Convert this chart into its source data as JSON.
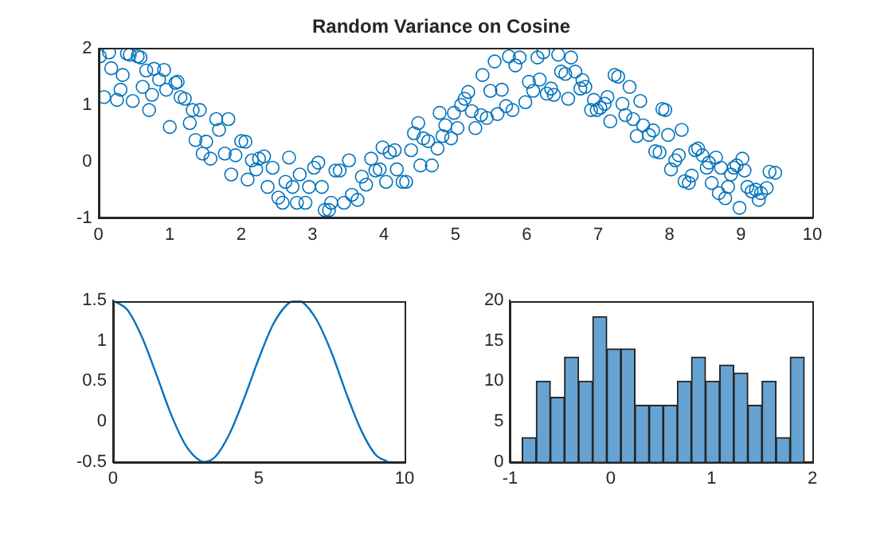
{
  "chart_data": [
    {
      "type": "scatter",
      "title": "Random Variance on Cosine",
      "color": "#0072bd",
      "marker": "circle",
      "xlim": [
        0,
        10
      ],
      "xticks": [
        0,
        1,
        2,
        3,
        4,
        5,
        6,
        7,
        8,
        9,
        10
      ],
      "ylim": [
        -1,
        2
      ],
      "yticks": [
        -1,
        0,
        1,
        2
      ],
      "x": [
        0.02,
        0.15,
        0.08,
        0.18,
        0.26,
        0.31,
        0.34,
        0.4,
        0.44,
        0.48,
        0.55,
        0.59,
        0.62,
        0.67,
        0.71,
        0.75,
        0.78,
        0.85,
        0.92,
        0.95,
        1.0,
        1.08,
        1.11,
        1.15,
        1.21,
        1.28,
        1.32,
        1.42,
        1.36,
        1.46,
        1.51,
        1.57,
        1.65,
        1.69,
        1.77,
        1.82,
        1.86,
        1.92,
        2.0,
        2.06,
        2.09,
        2.15,
        2.21,
        2.25,
        2.32,
        2.37,
        2.44,
        2.52,
        2.58,
        2.62,
        2.67,
        2.72,
        2.78,
        2.82,
        2.9,
        2.95,
        3.02,
        3.08,
        3.13,
        3.17,
        3.23,
        3.26,
        3.32,
        3.38,
        3.44,
        3.51,
        3.55,
        3.63,
        3.69,
        3.75,
        3.82,
        3.88,
        3.94,
        3.98,
        4.03,
        4.08,
        4.15,
        4.18,
        4.26,
        4.31,
        4.38,
        4.42,
        4.48,
        4.51,
        4.55,
        4.62,
        4.67,
        4.75,
        4.78,
        4.82,
        4.86,
        4.94,
        4.98,
        5.03,
        5.08,
        5.13,
        5.18,
        5.23,
        5.28,
        5.36,
        5.38,
        5.44,
        5.49,
        5.55,
        5.59,
        5.65,
        5.71,
        5.75,
        5.8,
        5.84,
        5.9,
        5.98,
        6.03,
        6.09,
        6.15,
        6.18,
        6.23,
        6.28,
        6.34,
        6.38,
        6.44,
        6.48,
        6.54,
        6.58,
        6.62,
        6.68,
        6.75,
        6.78,
        6.82,
        6.9,
        6.94,
        6.98,
        7.03,
        7.09,
        7.13,
        7.17,
        7.23,
        7.28,
        7.34,
        7.38,
        7.44,
        7.49,
        7.54,
        7.59,
        7.63,
        7.71,
        7.77,
        7.8,
        7.86,
        7.9,
        7.94,
        7.98,
        8.02,
        8.08,
        8.13,
        8.17,
        8.21,
        8.27,
        8.31,
        8.36,
        8.4,
        8.46,
        8.52,
        8.55,
        8.59,
        8.65,
        8.69,
        8.72,
        8.78,
        8.82,
        8.86,
        8.9,
        8.94,
        8.98,
        9.02,
        9.05,
        9.09,
        9.15,
        9.21,
        9.25,
        9.28,
        9.36,
        9.4,
        9.48
      ],
      "values": [
        1.86,
        1.93,
        1.14,
        1.65,
        1.09,
        1.27,
        1.53,
        1.91,
        1.89,
        1.07,
        1.86,
        1.84,
        1.32,
        1.61,
        0.91,
        1.18,
        1.64,
        1.45,
        1.62,
        1.27,
        0.61,
        1.39,
        1.41,
        1.14,
        1.11,
        0.68,
        0.91,
        0.91,
        0.38,
        0.14,
        0.35,
        0.05,
        0.75,
        0.56,
        0.14,
        0.75,
        -0.23,
        0.11,
        0.36,
        0.35,
        -0.32,
        0.02,
        -0.14,
        0.05,
        0.09,
        -0.45,
        -0.11,
        -0.64,
        -0.73,
        -0.36,
        0.07,
        -0.45,
        -0.73,
        -0.23,
        -0.73,
        -0.45,
        -0.11,
        -0.02,
        -0.45,
        -0.86,
        -0.86,
        -0.73,
        -0.16,
        -0.16,
        -0.73,
        0.02,
        -0.59,
        -0.68,
        -0.27,
        -0.41,
        0.05,
        -0.16,
        -0.14,
        0.25,
        -0.36,
        0.16,
        0.2,
        -0.14,
        -0.36,
        -0.36,
        0.2,
        0.5,
        0.68,
        -0.07,
        0.41,
        0.36,
        -0.07,
        0.23,
        0.86,
        0.45,
        0.64,
        0.41,
        0.86,
        0.59,
        1.0,
        1.11,
        1.23,
        0.89,
        0.59,
        0.82,
        1.53,
        0.77,
        1.25,
        1.77,
        0.84,
        1.27,
        0.98,
        1.86,
        0.91,
        1.7,
        1.84,
        1.05,
        1.41,
        1.25,
        1.84,
        1.45,
        1.93,
        1.2,
        1.29,
        1.18,
        1.89,
        1.59,
        1.55,
        1.11,
        1.84,
        1.59,
        1.29,
        1.44,
        1.32,
        0.91,
        1.09,
        0.91,
        0.95,
        1.02,
        1.14,
        0.71,
        1.53,
        1.5,
        1.02,
        0.82,
        1.32,
        0.75,
        0.45,
        1.07,
        0.64,
        0.47,
        0.55,
        0.18,
        0.16,
        0.93,
        0.91,
        0.47,
        -0.14,
        0.02,
        0.11,
        0.56,
        -0.35,
        -0.38,
        -0.25,
        0.2,
        0.23,
        0.11,
        -0.11,
        -0.02,
        -0.38,
        0.07,
        -0.56,
        -0.11,
        -0.65,
        -0.45,
        -0.23,
        -0.11,
        -0.07,
        -0.82,
        0.05,
        -0.16,
        -0.45,
        -0.53,
        -0.5,
        -0.68,
        -0.56,
        -0.47,
        -0.18,
        -0.2
      ]
    },
    {
      "type": "line",
      "color": "#0072bd",
      "xlim": [
        0,
        10
      ],
      "xticks": [
        0,
        5,
        10
      ],
      "ylim": [
        -0.5,
        1.5
      ],
      "yticks": [
        -0.5,
        0,
        0.5,
        1,
        1.5
      ],
      "x": [
        0,
        0.5,
        1,
        1.5,
        2,
        2.5,
        3,
        3.14,
        3.5,
        4,
        4.5,
        5,
        5.5,
        6,
        6.28,
        6.5,
        7,
        7.5,
        8,
        8.5,
        9,
        9.42
      ],
      "values": [
        1.5,
        1.38,
        1.04,
        0.57,
        0.08,
        -0.3,
        -0.49,
        -0.5,
        -0.44,
        -0.15,
        0.29,
        0.78,
        1.21,
        1.46,
        1.5,
        1.48,
        1.25,
        0.85,
        0.35,
        -0.1,
        -0.41,
        -0.5
      ]
    },
    {
      "type": "histogram",
      "color": "#66a3d2",
      "xlim": [
        -1,
        2
      ],
      "xticks": [
        -1,
        0,
        1,
        2
      ],
      "ylim": [
        0,
        20
      ],
      "yticks": [
        0,
        5,
        10,
        15,
        20
      ],
      "bins": [
        -0.88,
        -0.74,
        -0.6,
        -0.46,
        -0.32,
        -0.18,
        -0.04,
        0.1,
        0.24,
        0.38,
        0.52,
        0.66,
        0.8,
        0.94,
        1.08,
        1.22,
        1.36,
        1.5,
        1.64,
        1.78,
        1.92
      ],
      "values": [
        3,
        10,
        8,
        13,
        10,
        18,
        14,
        14,
        7,
        7,
        7,
        10,
        13,
        10,
        12,
        11,
        7,
        10,
        3,
        13
      ]
    }
  ]
}
